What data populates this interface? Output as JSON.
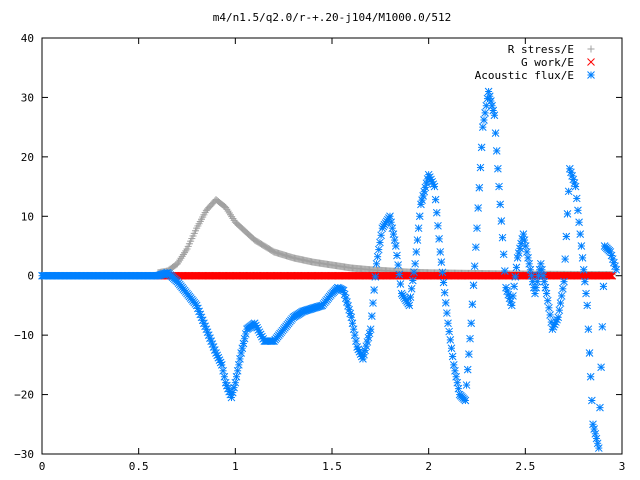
{
  "chart_data": {
    "type": "scatter",
    "title": "m4/n1.5/q2.0/r-+.20-j104/M1000.0/512",
    "xlabel": "",
    "ylabel": "",
    "xlim": [
      0,
      3
    ],
    "ylim": [
      -30,
      40
    ],
    "x_ticks": [
      0,
      0.5,
      1,
      1.5,
      2,
      2.5,
      3
    ],
    "x_tick_labels": [
      "0",
      "0.5",
      "1",
      "1.5",
      "2",
      "2.5",
      "3"
    ],
    "y_ticks": [
      -30,
      -20,
      -10,
      0,
      10,
      20,
      30,
      40
    ],
    "y_tick_labels": [
      "−30",
      "−20",
      "−10",
      "0",
      "10",
      "20",
      "30",
      "40"
    ],
    "grid": false,
    "legend_position": "top-right",
    "series": [
      {
        "name": "R stress/E",
        "marker": "plus",
        "color": "#a0a0a0",
        "x": [
          0.6,
          0.65,
          0.7,
          0.75,
          0.8,
          0.85,
          0.9,
          0.95,
          1.0,
          1.05,
          1.1,
          1.2,
          1.3,
          1.4,
          1.5,
          1.6,
          1.7,
          1.8,
          1.9,
          2.0,
          2.2,
          2.4,
          2.6,
          2.8,
          2.95
        ],
        "y": [
          0.5,
          0.8,
          2,
          4.5,
          8,
          11,
          12.8,
          11.5,
          9,
          7.5,
          6,
          4,
          3,
          2.3,
          1.8,
          1.3,
          1.0,
          0.8,
          0.6,
          0.5,
          0.4,
          0.3,
          0.25,
          0.2,
          0.2
        ]
      },
      {
        "name": "G work/E",
        "marker": "cross",
        "color": "#ff0000",
        "x": [
          0.6,
          0.8,
          1.0,
          1.2,
          1.4,
          1.6,
          1.8,
          2.0,
          2.2,
          2.4,
          2.6,
          2.8,
          2.95
        ],
        "y": [
          0,
          0,
          0,
          0,
          0,
          0,
          0,
          0,
          0,
          0,
          0,
          0,
          0
        ]
      },
      {
        "name": "Acoustic flux/E",
        "marker": "star",
        "color": "#0080ff",
        "x": [
          0,
          0.1,
          0.2,
          0.3,
          0.4,
          0.5,
          0.6,
          0.65,
          0.7,
          0.75,
          0.8,
          0.85,
          0.9,
          0.93,
          0.95,
          0.98,
          1.0,
          1.03,
          1.06,
          1.1,
          1.15,
          1.2,
          1.25,
          1.3,
          1.35,
          1.4,
          1.45,
          1.5,
          1.53,
          1.56,
          1.6,
          1.63,
          1.66,
          1.7,
          1.73,
          1.76,
          1.8,
          1.83,
          1.86,
          1.9,
          1.93,
          1.96,
          2.0,
          2.03,
          2.06,
          2.1,
          2.13,
          2.16,
          2.19,
          2.22,
          2.25,
          2.28,
          2.31,
          2.34,
          2.37,
          2.4,
          2.43,
          2.46,
          2.49,
          2.52,
          2.55,
          2.58,
          2.61,
          2.64,
          2.67,
          2.7,
          2.73,
          2.76,
          2.79,
          2.82,
          2.85,
          2.88,
          2.91,
          2.94,
          2.97
        ],
        "y": [
          0,
          0,
          0,
          0,
          0,
          0,
          0,
          0.5,
          -1,
          -3,
          -5,
          -9,
          -13,
          -15,
          -18,
          -20.5,
          -18,
          -13,
          -9,
          -8,
          -11,
          -11,
          -9,
          -7,
          -6,
          -5.5,
          -5,
          -3,
          -2,
          -2.5,
          -7,
          -12,
          -14,
          -9,
          2,
          8,
          10,
          5,
          -3,
          -5,
          2,
          12,
          17,
          15,
          4,
          -8,
          -15,
          -20,
          -21,
          -8,
          8,
          25,
          31,
          27,
          12,
          -2,
          -5,
          3,
          7,
          2,
          -3,
          2,
          -3,
          -9,
          -7,
          -1,
          18,
          15,
          5,
          -5,
          -25,
          -29,
          5,
          4,
          1
        ]
      }
    ]
  }
}
